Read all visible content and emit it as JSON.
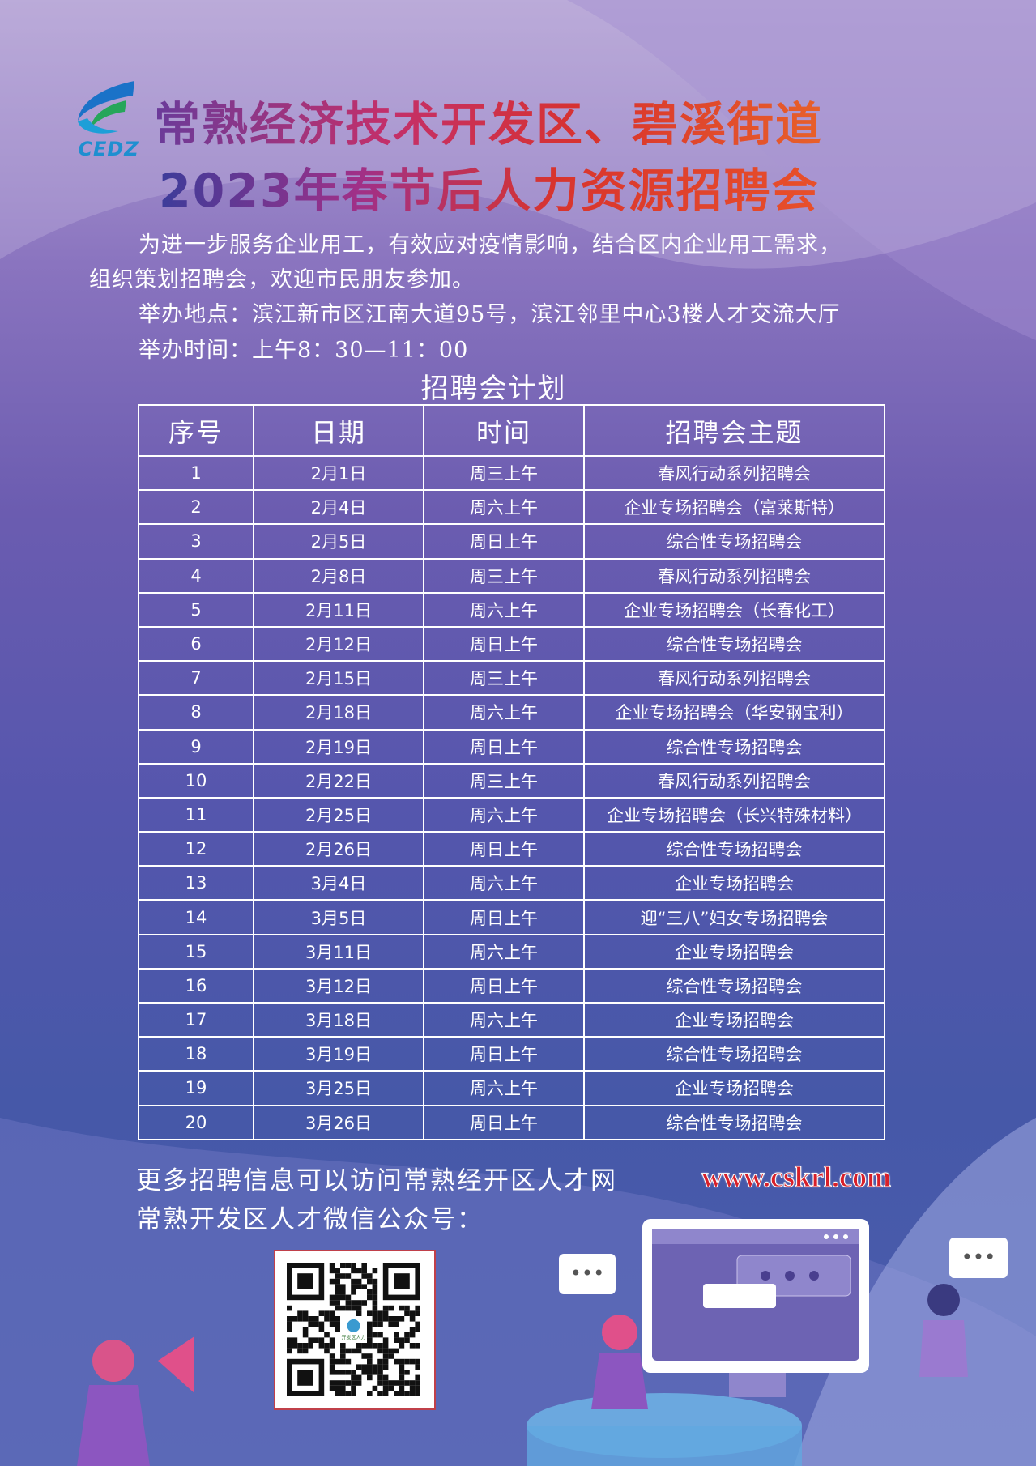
{
  "header": {
    "logo_text": "CEDZ",
    "title_line1": "常熟经济技术开发区、碧溪街道",
    "title_line2": "2023年春节后人力资源招聘会"
  },
  "intro": {
    "line1": "为进一步服务企业用工，有效应对疫情影响，结合区内企业用工需求，",
    "line2": "组织策划招聘会，欢迎市民朋友参加。",
    "location": "举办地点：滨江新市区江南大道95号，滨江邻里中心3楼人才交流大厅",
    "time": "举办时间：上午8：30—11：00"
  },
  "schedule": {
    "caption": "招聘会计划",
    "headers": [
      "序号",
      "日期",
      "时间",
      "招聘会主题"
    ],
    "rows": [
      [
        "1",
        "2月1日",
        "周三上午",
        "春风行动系列招聘会"
      ],
      [
        "2",
        "2月4日",
        "周六上午",
        "企业专场招聘会（富莱斯特）"
      ],
      [
        "3",
        "2月5日",
        "周日上午",
        "综合性专场招聘会"
      ],
      [
        "4",
        "2月8日",
        "周三上午",
        "春风行动系列招聘会"
      ],
      [
        "5",
        "2月11日",
        "周六上午",
        "企业专场招聘会（长春化工）"
      ],
      [
        "6",
        "2月12日",
        "周日上午",
        "综合性专场招聘会"
      ],
      [
        "7",
        "2月15日",
        "周三上午",
        "春风行动系列招聘会"
      ],
      [
        "8",
        "2月18日",
        "周六上午",
        "企业专场招聘会（华安钢宝利）"
      ],
      [
        "9",
        "2月19日",
        "周日上午",
        "综合性专场招聘会"
      ],
      [
        "10",
        "2月22日",
        "周三上午",
        "春风行动系列招聘会"
      ],
      [
        "11",
        "2月25日",
        "周六上午",
        "企业专场招聘会（长兴特殊材料）"
      ],
      [
        "12",
        "2月26日",
        "周日上午",
        "综合性专场招聘会"
      ],
      [
        "13",
        "3月4日",
        "周六上午",
        "企业专场招聘会"
      ],
      [
        "14",
        "3月5日",
        "周日上午",
        "迎“三八”妇女专场招聘会"
      ],
      [
        "15",
        "3月11日",
        "周六上午",
        "企业专场招聘会"
      ],
      [
        "16",
        "3月12日",
        "周日上午",
        "综合性专场招聘会"
      ],
      [
        "17",
        "3月18日",
        "周六上午",
        "企业专场招聘会"
      ],
      [
        "18",
        "3月19日",
        "周日上午",
        "综合性专场招聘会"
      ],
      [
        "19",
        "3月25日",
        "周六上午",
        "企业专场招聘会"
      ],
      [
        "20",
        "3月26日",
        "周日上午",
        "综合性专场招聘会"
      ]
    ]
  },
  "footer": {
    "more_info": "更多招聘信息可以访问常熟经开区人才网",
    "url": "www.cskrl.com",
    "wechat": "常熟开发区人才微信公众号：",
    "qr_logo_text": "开发区人力"
  },
  "colors": {
    "title_red": "#d8322e",
    "url_red": "#d8202a",
    "table_border": "#ffffff"
  }
}
